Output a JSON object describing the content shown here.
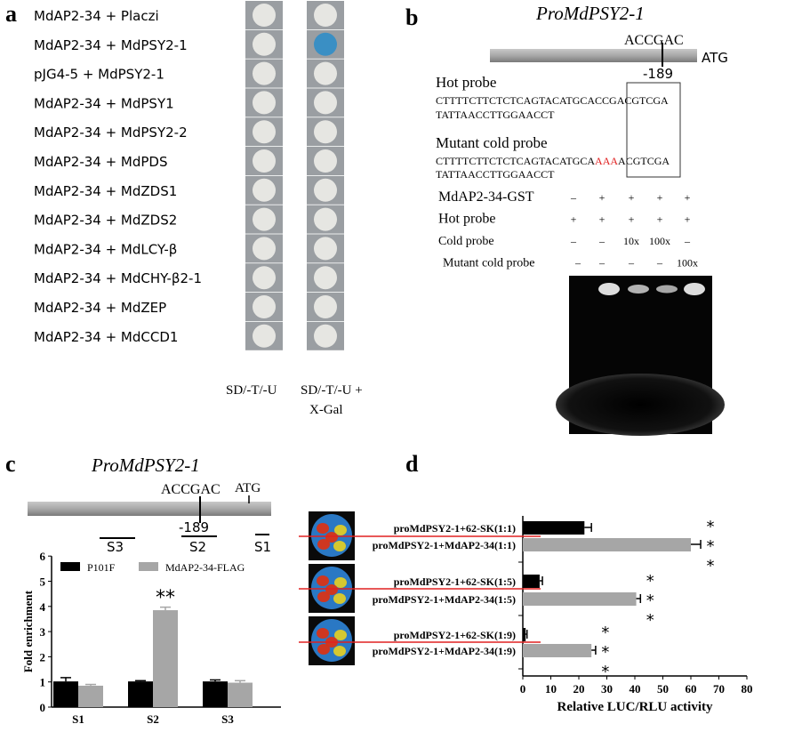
{
  "panel_a": {
    "label": "a",
    "rows": [
      "MdAP2-34 + Placzi",
      "MdAP2-34 + MdPSY2-1",
      "pJG4-5 + MdPSY2-1",
      "MdAP2-34 + MdPSY1",
      "MdAP2-34 + MdPSY2-2",
      "MdAP2-34 + MdPDS",
      "MdAP2-34 + MdZDS1",
      "MdAP2-34 + MdZDS2",
      "MdAP2-34 + MdLCY-β",
      "MdAP2-34 + MdCHY-β2-1",
      "MdAP2-34 + MdZEP",
      "MdAP2-34 + MdCCD1"
    ],
    "blue_row": 1,
    "col1_label": "SD/-T/-U",
    "col2_label_1": "SD/-T/-U +",
    "col2_label_2": "X-Gal",
    "colors": {
      "colony": "#e6e6e2",
      "well": "#9a9ea2",
      "blue": "#3a8fc4"
    }
  },
  "panel_b": {
    "label": "b",
    "title": "ProMdPSY2-1",
    "motif": "ACCGAC",
    "atg": "ATG",
    "position": "-189",
    "hot_probe_label": "Hot probe",
    "hot_seq_1": "CTTTTCTTCTCTCAGTACATGCACCGACGTCGA",
    "hot_seq_2": "TATTAACCTTGGAACCT",
    "mut_label": "Mutant cold probe",
    "mut_seq_prefix": "CTTTTCTTCTCTCAGTACATGCA",
    "mut_seq_red": "AAA",
    "mut_seq_suffix": "ACGTCGA",
    "mut_seq_2": "TATTAACCTTGGAACCT",
    "table": [
      {
        "label": "MdAP2-34-GST",
        "values": [
          "–",
          "+",
          "+",
          "+",
          "+"
        ]
      },
      {
        "label": "Hot probe",
        "values": [
          "+",
          "+",
          "+",
          "+",
          "+"
        ]
      },
      {
        "label": "Cold probe",
        "values": [
          "–",
          "–",
          "10x",
          "100x",
          "–"
        ]
      },
      {
        "label": "Mutant cold probe",
        "values": [
          "–",
          "–",
          "–",
          "–",
          "100x"
        ]
      }
    ],
    "gel_band_lanes": [
      false,
      true,
      true,
      true,
      true
    ]
  },
  "chart_data": [
    {
      "panel": "c",
      "type": "bar",
      "title": "ProMdPSY2-1",
      "motif": "ACCGAC",
      "atg": "ATG",
      "position": "-189",
      "region_labels": [
        "S3",
        "S2",
        "S1"
      ],
      "categories": [
        "S1",
        "S2",
        "S3"
      ],
      "ylabel": "Fold enrichment",
      "ylim": [
        0,
        6
      ],
      "yticks": [
        "0",
        "1",
        "2",
        "3",
        "4",
        "5",
        "6"
      ],
      "legend_position": "top",
      "series": [
        {
          "name": "P101F",
          "values": [
            1.02,
            1.02,
            1.02
          ],
          "errors": [
            0.15,
            0.03,
            0.06
          ],
          "color": "#000000"
        },
        {
          "name": "MdAP2-34-FLAG",
          "values": [
            0.85,
            3.85,
            0.97
          ],
          "errors": [
            0.05,
            0.12,
            0.08
          ],
          "color": "#a6a6a6"
        }
      ],
      "annotation": "**",
      "annotation_category": "S2"
    },
    {
      "panel": "d",
      "type": "bar",
      "orientation": "horizontal",
      "categories": [
        "proMdPSY2-1+62-SK(1:1)",
        "proMdPSY2-1+MdAP2-34(1:1)",
        "proMdPSY2-1+62-SK(1:5)",
        "proMdPSY2-1+MdAP2-34(1:5)",
        "proMdPSY2-1+62-SK(1:9)",
        "proMdPSY2-1+MdAP2-34(1:9)"
      ],
      "values": [
        22,
        60,
        6,
        40.5,
        1,
        24.5
      ],
      "errors": [
        2.5,
        3.5,
        1,
        1.5,
        0.5,
        1.5
      ],
      "colors": [
        "#000000",
        "#a6a6a6",
        "#000000",
        "#a6a6a6",
        "#000000",
        "#a6a6a6"
      ],
      "xlabel": "Relative LUC/RLU activity",
      "xlim": [
        0,
        80
      ],
      "xticks": [
        "0",
        "10",
        "20",
        "30",
        "40",
        "50",
        "60",
        "70",
        "80"
      ],
      "annotation": "*",
      "annotated": [
        1,
        3,
        5
      ]
    }
  ],
  "panel_c_label": "c",
  "panel_d_label": "d"
}
